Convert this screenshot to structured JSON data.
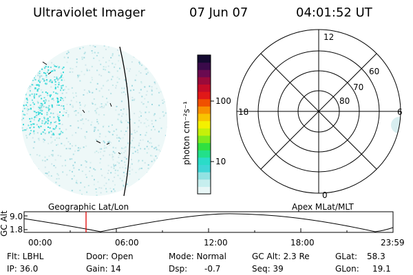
{
  "header": {
    "title": "Ultraviolet Imager",
    "date": "07 Jun 07",
    "time": "04:01:52 UT"
  },
  "colorbar": {
    "unit_label": "photon cm⁻²s⁻¹",
    "tick_100": "100",
    "tick_10": "10",
    "colors": [
      "#e8f6f6",
      "#c6eeee",
      "#93e2e2",
      "#3fd6d6",
      "#2adcc8",
      "#22e08a",
      "#30e040",
      "#7cea1e",
      "#c4f00a",
      "#f4f000",
      "#f8c400",
      "#f89000",
      "#f05000",
      "#e01818",
      "#c40c28",
      "#9a0a3a",
      "#6a0a50",
      "#3a0a4a",
      "#140a30"
    ]
  },
  "polar_plot": {
    "label_top": "12",
    "label_bottom": "0",
    "label_left": "18",
    "label_right": "6",
    "ring_60": "60",
    "ring_70": "70",
    "ring_80": "80"
  },
  "timeline": {
    "left_caption": "Geographic Lat/Lon",
    "right_caption": "Apex MLat/MLT",
    "ylabel": "GC Alt",
    "y_top": "9.0",
    "y_bottom": "1.8",
    "ticks": [
      "00:00",
      "06:00",
      "12:00",
      "18:00",
      "23:59"
    ],
    "marker_time_hours": 4.03
  },
  "info": {
    "flt": "Flt: LBHL",
    "door": "Door: Open",
    "mode": "Mode: Normal",
    "gcalt": "GC Alt: 2.3 Re",
    "glat_label": "GLat:",
    "glat_value": "58.3",
    "ip": "IP: 36.0",
    "gain": "Gain: 14",
    "dsp_label": "Dsp:",
    "dsp_value": "-0.7",
    "seq": "Seq: 39",
    "glon_label": "GLon:",
    "glon_value": "19.1"
  }
}
